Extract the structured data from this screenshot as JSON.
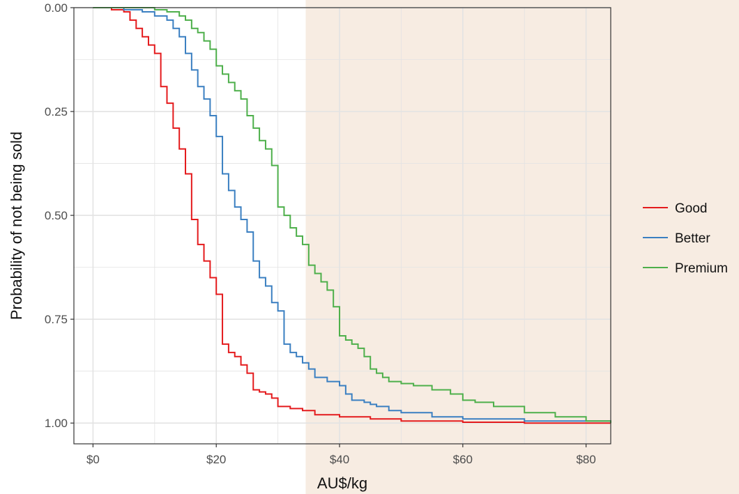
{
  "colors": {
    "good": "#e41a1c",
    "better": "#3a7fc1",
    "premium": "#4daf4a",
    "highlight": "#f7ece2",
    "grid": "#e3e3e3",
    "axis": "#333333",
    "tick_label": "#4d4d4d"
  },
  "chart_data": {
    "type": "line",
    "step": true,
    "title": "",
    "xlabel": "AU$/kg",
    "ylabel": "Probability of not being sold",
    "xlim": [
      -3.1,
      84
    ],
    "ylim": [
      0,
      1.05
    ],
    "y_reversed": true,
    "x_ticks": [
      0,
      20,
      40,
      60,
      80
    ],
    "x_tick_labels": [
      "$0",
      "$20",
      "$40",
      "$60",
      "$80"
    ],
    "y_ticks": [
      0,
      0.25,
      0.5,
      0.75,
      1.0
    ],
    "y_tick_labels": [
      "0.00",
      "0.25",
      "0.50",
      "0.75",
      "1.00"
    ],
    "grid": true,
    "highlight_region": {
      "x_from": 34.5,
      "x_to": 84
    },
    "legend_position": "right",
    "series": [
      {
        "name": "Good",
        "color_key": "good",
        "x": [
          0,
          3,
          5,
          6,
          7,
          8,
          9,
          10,
          11,
          12,
          13,
          14,
          15,
          16,
          17,
          18,
          19,
          20,
          21,
          22,
          23,
          24,
          25,
          26,
          27,
          28,
          29,
          30,
          32,
          34,
          36,
          40,
          45,
          50,
          60,
          70,
          84
        ],
        "y": [
          0,
          0.005,
          0.01,
          0.03,
          0.05,
          0.07,
          0.09,
          0.11,
          0.19,
          0.23,
          0.29,
          0.34,
          0.4,
          0.51,
          0.57,
          0.61,
          0.65,
          0.69,
          0.81,
          0.83,
          0.84,
          0.86,
          0.88,
          0.92,
          0.925,
          0.93,
          0.94,
          0.96,
          0.965,
          0.97,
          0.98,
          0.985,
          0.99,
          0.995,
          0.998,
          1.0,
          1.0
        ]
      },
      {
        "name": "Better",
        "color_key": "better",
        "x": [
          0,
          5,
          8,
          10,
          12,
          13,
          14,
          15,
          16,
          17,
          18,
          19,
          20,
          21,
          22,
          23,
          24,
          25,
          26,
          27,
          28,
          29,
          30,
          31,
          32,
          33,
          34,
          35,
          36,
          38,
          40,
          41,
          42,
          44,
          45,
          46,
          48,
          50,
          55,
          60,
          70,
          84
        ],
        "y": [
          0,
          0.005,
          0.01,
          0.02,
          0.03,
          0.05,
          0.07,
          0.11,
          0.15,
          0.19,
          0.22,
          0.26,
          0.31,
          0.4,
          0.44,
          0.48,
          0.51,
          0.54,
          0.61,
          0.65,
          0.67,
          0.71,
          0.73,
          0.81,
          0.83,
          0.84,
          0.855,
          0.87,
          0.89,
          0.9,
          0.91,
          0.93,
          0.945,
          0.95,
          0.955,
          0.96,
          0.97,
          0.975,
          0.985,
          0.99,
          0.995,
          1.0
        ]
      },
      {
        "name": "Premium",
        "color_key": "premium",
        "x": [
          0,
          10,
          12,
          14,
          15,
          16,
          17,
          18,
          19,
          20,
          21,
          22,
          23,
          24,
          25,
          26,
          27,
          28,
          29,
          30,
          31,
          32,
          33,
          34,
          35,
          36,
          37,
          38,
          39,
          40,
          41,
          42,
          43,
          44,
          45,
          46,
          47,
          48,
          50,
          52,
          55,
          58,
          60,
          62,
          65,
          70,
          75,
          80,
          84
        ],
        "y": [
          0,
          0.005,
          0.01,
          0.02,
          0.03,
          0.05,
          0.06,
          0.08,
          0.1,
          0.14,
          0.16,
          0.18,
          0.2,
          0.22,
          0.26,
          0.29,
          0.32,
          0.34,
          0.38,
          0.48,
          0.5,
          0.53,
          0.55,
          0.57,
          0.62,
          0.64,
          0.66,
          0.68,
          0.72,
          0.79,
          0.8,
          0.81,
          0.82,
          0.84,
          0.87,
          0.88,
          0.89,
          0.9,
          0.905,
          0.91,
          0.92,
          0.93,
          0.945,
          0.95,
          0.96,
          0.975,
          0.985,
          0.995,
          1.0
        ]
      }
    ]
  }
}
